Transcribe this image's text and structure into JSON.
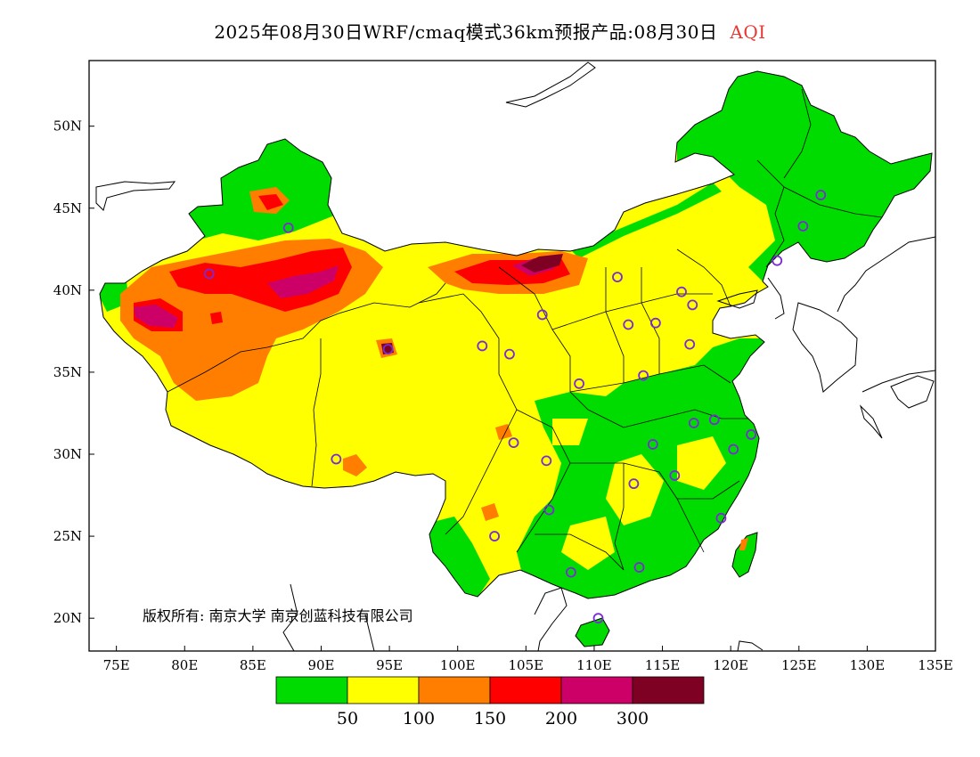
{
  "title": {
    "main": "2025年08月30日WRF/cmaq模式36km预报产品:08月30日",
    "variable": "AQI",
    "variable_color": "#e53935"
  },
  "map": {
    "projection": "lat-lon",
    "lon_range": [
      73,
      135
    ],
    "lat_range": [
      18,
      54
    ],
    "lon_ticks": [
      "75E",
      "80E",
      "85E",
      "90E",
      "95E",
      "100E",
      "105E",
      "110E",
      "115E",
      "120E",
      "125E",
      "130E",
      "135E"
    ],
    "lat_ticks": [
      "20N",
      "25N",
      "30N",
      "35N",
      "40N",
      "45N",
      "50N"
    ],
    "copyright": "版权所有: 南京大学 南京创蓝科技有限公司"
  },
  "legend": {
    "colors": [
      "#00dc00",
      "#ffff00",
      "#ff7e00",
      "#ff0000",
      "#cc0066",
      "#7e0023"
    ],
    "labels": [
      "50",
      "100",
      "150",
      "200",
      "300"
    ]
  },
  "stations": [
    {
      "lon": 126.6,
      "lat": 45.8
    },
    {
      "lon": 125.3,
      "lat": 43.9
    },
    {
      "lon": 123.4,
      "lat": 41.8
    },
    {
      "lon": 87.6,
      "lat": 43.8
    },
    {
      "lon": 81.8,
      "lat": 41.0
    },
    {
      "lon": 111.7,
      "lat": 40.8
    },
    {
      "lon": 116.4,
      "lat": 39.9
    },
    {
      "lon": 117.2,
      "lat": 39.1
    },
    {
      "lon": 106.2,
      "lat": 38.5
    },
    {
      "lon": 114.5,
      "lat": 38.0
    },
    {
      "lon": 112.5,
      "lat": 37.9
    },
    {
      "lon": 101.8,
      "lat": 36.6
    },
    {
      "lon": 103.8,
      "lat": 36.1
    },
    {
      "lon": 117.0,
      "lat": 36.7
    },
    {
      "lon": 94.9,
      "lat": 36.4
    },
    {
      "lon": 113.6,
      "lat": 34.8
    },
    {
      "lon": 108.9,
      "lat": 34.3
    },
    {
      "lon": 118.8,
      "lat": 32.1
    },
    {
      "lon": 117.3,
      "lat": 31.9
    },
    {
      "lon": 121.5,
      "lat": 31.2
    },
    {
      "lon": 120.2,
      "lat": 30.3
    },
    {
      "lon": 114.3,
      "lat": 30.6
    },
    {
      "lon": 104.1,
      "lat": 30.7
    },
    {
      "lon": 106.5,
      "lat": 29.6
    },
    {
      "lon": 91.1,
      "lat": 29.7
    },
    {
      "lon": 115.9,
      "lat": 28.7
    },
    {
      "lon": 112.9,
      "lat": 28.2
    },
    {
      "lon": 106.7,
      "lat": 26.6
    },
    {
      "lon": 119.3,
      "lat": 26.1
    },
    {
      "lon": 102.7,
      "lat": 25.0
    },
    {
      "lon": 113.3,
      "lat": 23.1
    },
    {
      "lon": 108.3,
      "lat": 22.8
    },
    {
      "lon": 110.3,
      "lat": 20.0
    }
  ]
}
